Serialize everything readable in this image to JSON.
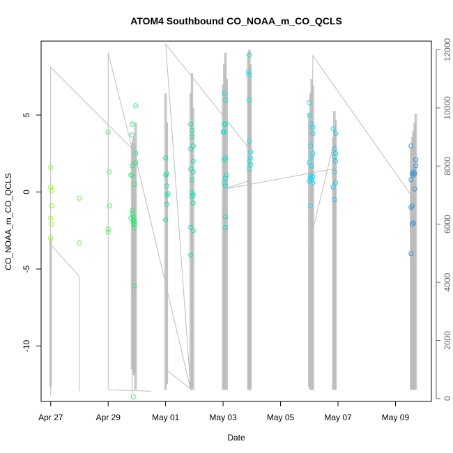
{
  "chart_data": {
    "type": "scatter",
    "title": "ATOM4 Southbound CO_NOAA_m_CO_QCLS",
    "xlabel": "Date",
    "ylabel": "CO_NOAA_m_CO_QCLS",
    "y2label": "",
    "x_axis": {
      "type": "date",
      "range": [
        "2018-04-26T16:00",
        "2018-05-10T06:00"
      ],
      "ticks": [
        {
          "value": "2018-04-27",
          "label": "Apr 27"
        },
        {
          "value": "2018-04-29",
          "label": "Apr 29"
        },
        {
          "value": "2018-05-01",
          "label": "May 01"
        },
        {
          "value": "2018-05-03",
          "label": "May 03"
        },
        {
          "value": "2018-05-05",
          "label": "May 05"
        },
        {
          "value": "2018-05-07",
          "label": "May 07"
        },
        {
          "value": "2018-05-09",
          "label": "May 09"
        }
      ]
    },
    "y_axis": {
      "range": [
        -13.6,
        9.8
      ],
      "ticks": [
        -10,
        -5,
        0,
        5
      ]
    },
    "y2_axis": {
      "range": [
        -100,
        12300
      ],
      "ticks": [
        0,
        2000,
        4000,
        6000,
        8000,
        10000,
        12000
      ]
    },
    "grid": false,
    "color_gradient": [
      "#7fff00",
      "#00e0a0",
      "#00e8ff",
      "#2a8fe0"
    ],
    "series": [
      {
        "style": "points",
        "axis": "left",
        "points": [
          {
            "x": "2018-04-27T00:00",
            "y": 1.6
          },
          {
            "x": "2018-04-27T00:00",
            "y": 0.3
          },
          {
            "x": "2018-04-27T01:00",
            "y": 0.1
          },
          {
            "x": "2018-04-27T01:00",
            "y": -0.9
          },
          {
            "x": "2018-04-27T00:00",
            "y": -1.7
          },
          {
            "x": "2018-04-27T01:00",
            "y": -2.1
          },
          {
            "x": "2018-04-27T00:00",
            "y": -3.0
          },
          {
            "x": "2018-04-28T00:00",
            "y": -0.4
          },
          {
            "x": "2018-04-28T00:00",
            "y": -3.3
          },
          {
            "x": "2018-04-29T00:00",
            "y": 3.9
          },
          {
            "x": "2018-04-29T01:00",
            "y": 1.3
          },
          {
            "x": "2018-04-29T01:00",
            "y": -0.9
          },
          {
            "x": "2018-04-29T00:00",
            "y": -2.4
          },
          {
            "x": "2018-04-29T00:00",
            "y": -2.6
          },
          {
            "x": "2018-04-29T20:00",
            "y": 4.4
          },
          {
            "x": "2018-04-29T20:00",
            "y": 3.7
          },
          {
            "x": "2018-04-29T20:00",
            "y": 1.7
          },
          {
            "x": "2018-04-29T19:00",
            "y": 1.1
          },
          {
            "x": "2018-04-29T20:00",
            "y": 1.1
          },
          {
            "x": "2018-04-29T22:00",
            "y": 0.5
          },
          {
            "x": "2018-04-29T20:00",
            "y": -1.2
          },
          {
            "x": "2018-04-29T20:00",
            "y": -1.4
          },
          {
            "x": "2018-04-29T21:00",
            "y": -1.6
          },
          {
            "x": "2018-04-29T19:00",
            "y": -1.7
          },
          {
            "x": "2018-04-29T21:00",
            "y": -1.8
          },
          {
            "x": "2018-04-29T22:00",
            "y": -1.9
          },
          {
            "x": "2018-04-29T21:00",
            "y": -2.0
          },
          {
            "x": "2018-04-29T22:00",
            "y": -2.1
          },
          {
            "x": "2018-04-29T22:00",
            "y": -2.3
          },
          {
            "x": "2018-04-29T23:00",
            "y": 5.6
          },
          {
            "x": "2018-04-29T23:00",
            "y": 2.5
          },
          {
            "x": "2018-04-29T23:00",
            "y": 1.9
          },
          {
            "x": "2018-04-29T22:00",
            "y": -6.1
          },
          {
            "x": "2018-04-29T21:00",
            "y": -13.3
          },
          {
            "x": "2018-05-01T00:00",
            "y": 2.2
          },
          {
            "x": "2018-05-01T01:00",
            "y": 1.2
          },
          {
            "x": "2018-05-01T00:00",
            "y": 1.1
          },
          {
            "x": "2018-05-01T01:00",
            "y": 0.4
          },
          {
            "x": "2018-05-01T02:00",
            "y": -0.1
          },
          {
            "x": "2018-05-01T01:00",
            "y": -0.2
          },
          {
            "x": "2018-05-01T01:00",
            "y": -0.8
          },
          {
            "x": "2018-05-01T00:00",
            "y": -1.8
          },
          {
            "x": "2018-05-01T21:00",
            "y": 4.4
          },
          {
            "x": "2018-05-01T22:00",
            "y": 4.0
          },
          {
            "x": "2018-05-01T22:00",
            "y": 3.6
          },
          {
            "x": "2018-05-01T23:00",
            "y": 3.0
          },
          {
            "x": "2018-05-01T21:00",
            "y": 2.8
          },
          {
            "x": "2018-05-01T23:00",
            "y": 2.0
          },
          {
            "x": "2018-05-01T21:00",
            "y": 1.5
          },
          {
            "x": "2018-05-01T23:00",
            "y": 1.3
          },
          {
            "x": "2018-05-01T22:00",
            "y": 0.8
          },
          {
            "x": "2018-05-01T22:00",
            "y": 0.0
          },
          {
            "x": "2018-05-01T23:00",
            "y": -0.2
          },
          {
            "x": "2018-05-01T22:00",
            "y": -0.3
          },
          {
            "x": "2018-05-01T23:00",
            "y": -0.7
          },
          {
            "x": "2018-05-01T21:00",
            "y": -2.3
          },
          {
            "x": "2018-05-01T23:00",
            "y": -2.5
          },
          {
            "x": "2018-05-01T21:00",
            "y": -4.1
          },
          {
            "x": "2018-05-03T01:00",
            "y": 6.4
          },
          {
            "x": "2018-05-03T02:00",
            "y": 6.0
          },
          {
            "x": "2018-05-03T01:00",
            "y": 4.4
          },
          {
            "x": "2018-05-03T02:00",
            "y": 4.4
          },
          {
            "x": "2018-05-03T00:00",
            "y": 3.9
          },
          {
            "x": "2018-05-03T01:00",
            "y": 3.9
          },
          {
            "x": "2018-05-03T02:00",
            "y": 2.2
          },
          {
            "x": "2018-05-03T01:00",
            "y": 2.1
          },
          {
            "x": "2018-05-03T03:00",
            "y": 1.1
          },
          {
            "x": "2018-05-03T02:00",
            "y": 0.9
          },
          {
            "x": "2018-05-03T01:00",
            "y": 0.6
          },
          {
            "x": "2018-05-03T02:00",
            "y": 0.4
          },
          {
            "x": "2018-05-03T02:00",
            "y": -1.6
          },
          {
            "x": "2018-05-03T02:00",
            "y": -2.3
          },
          {
            "x": "2018-05-03T22:00",
            "y": 8.9
          },
          {
            "x": "2018-05-03T21:00",
            "y": 7.8
          },
          {
            "x": "2018-05-03T22:00",
            "y": 7.6
          },
          {
            "x": "2018-05-03T22:00",
            "y": 6.0
          },
          {
            "x": "2018-05-03T22:00",
            "y": 3.3
          },
          {
            "x": "2018-05-03T23:00",
            "y": 2.6
          },
          {
            "x": "2018-05-03T23:00",
            "y": 2.2
          },
          {
            "x": "2018-05-03T22:00",
            "y": 2.0
          },
          {
            "x": "2018-05-03T23:00",
            "y": 1.8
          },
          {
            "x": "2018-05-03T22:00",
            "y": 1.5
          },
          {
            "x": "2018-05-06T00:00",
            "y": 5.8
          },
          {
            "x": "2018-05-06T00:00",
            "y": 5.0
          },
          {
            "x": "2018-05-06T02:00",
            "y": 4.4
          },
          {
            "x": "2018-05-06T03:00",
            "y": 4.2
          },
          {
            "x": "2018-05-06T03:00",
            "y": 3.8
          },
          {
            "x": "2018-05-06T01:00",
            "y": 3.0
          },
          {
            "x": "2018-05-06T03:00",
            "y": 2.5
          },
          {
            "x": "2018-05-06T02:00",
            "y": 2.3
          },
          {
            "x": "2018-05-06T00:00",
            "y": 1.9
          },
          {
            "x": "2018-05-06T02:00",
            "y": 1.7
          },
          {
            "x": "2018-05-06T01:00",
            "y": 1.1
          },
          {
            "x": "2018-05-06T03:00",
            "y": 1.0
          },
          {
            "x": "2018-05-06T01:00",
            "y": 0.9
          },
          {
            "x": "2018-05-06T02:00",
            "y": 0.8
          },
          {
            "x": "2018-05-06T00:00",
            "y": 0.7
          },
          {
            "x": "2018-05-06T03:00",
            "y": 0.6
          },
          {
            "x": "2018-05-06T01:00",
            "y": -0.9
          },
          {
            "x": "2018-05-06T20:00",
            "y": 4.1
          },
          {
            "x": "2018-05-06T22:00",
            "y": 3.8
          },
          {
            "x": "2018-05-06T21:00",
            "y": 2.8
          },
          {
            "x": "2018-05-06T22:00",
            "y": 2.5
          },
          {
            "x": "2018-05-06T21:00",
            "y": 2.3
          },
          {
            "x": "2018-05-06T22:00",
            "y": 2.0
          },
          {
            "x": "2018-05-06T21:00",
            "y": 1.3
          },
          {
            "x": "2018-05-06T22:00",
            "y": 0.6
          },
          {
            "x": "2018-05-06T20:00",
            "y": 0.3
          },
          {
            "x": "2018-05-06T21:00",
            "y": -0.5
          },
          {
            "x": "2018-05-09T13:00",
            "y": 3.0
          },
          {
            "x": "2018-05-09T17:00",
            "y": 2.1
          },
          {
            "x": "2018-05-09T17:00",
            "y": 1.7
          },
          {
            "x": "2018-05-09T15:00",
            "y": 1.3
          },
          {
            "x": "2018-05-09T14:00",
            "y": 1.2
          },
          {
            "x": "2018-05-09T16:00",
            "y": 1.2
          },
          {
            "x": "2018-05-09T15:00",
            "y": 1.1
          },
          {
            "x": "2018-05-09T13:00",
            "y": 0.8
          },
          {
            "x": "2018-05-09T16:00",
            "y": 0.2
          },
          {
            "x": "2018-05-09T14:00",
            "y": -0.9
          },
          {
            "x": "2018-05-09T13:00",
            "y": -1.0
          },
          {
            "x": "2018-05-09T15:00",
            "y": -2.0
          },
          {
            "x": "2018-05-09T14:00",
            "y": -2.1
          },
          {
            "x": "2018-05-09T13:00",
            "y": -4.0
          }
        ]
      },
      {
        "style": "line",
        "axis": "right",
        "segments": [
          {
            "points": [
              {
                "x": "2018-04-27T00:00",
                "y": 100
              },
              {
                "x": "2018-04-27T00:00",
                "y": 5300
              },
              {
                "x": "2018-04-28T00:00",
                "y": 4200
              },
              {
                "x": "2018-04-28T00:00",
                "y": 250
              },
              {
                "x": "2018-04-28T00:00",
                "y": 4200
              },
              {
                "x": "2018-04-27T00:00",
                "y": 5300
              },
              {
                "x": "2018-04-27T00:00",
                "y": 11400
              },
              {
                "x": "2018-04-29T20:00",
                "y": 8600
              },
              {
                "x": "2018-04-29T20:00",
                "y": 200
              },
              {
                "x": "2018-04-29T20:00",
                "y": 8600
              },
              {
                "x": "2018-04-29T00:00",
                "y": 11900
              },
              {
                "x": "2018-04-29T00:00",
                "y": 300
              },
              {
                "x": "2018-04-30T12:00",
                "y": 250
              }
            ]
          },
          {
            "points": [
              {
                "x": "2018-04-29T20:00",
                "y": 8800
              },
              {
                "x": "2018-05-01T21:00",
                "y": 300
              },
              {
                "x": "2018-05-01T00:00",
                "y": 12200
              },
              {
                "x": "2018-05-03T22:00",
                "y": 8600
              },
              {
                "x": "2018-05-03T22:00",
                "y": 250
              },
              {
                "x": "2018-05-03T22:00",
                "y": 7500
              },
              {
                "x": "2018-05-03T00:00",
                "y": 7200
              },
              {
                "x": "2018-05-06T20:00",
                "y": 7900
              },
              {
                "x": "2018-05-06T20:00",
                "y": 8700
              },
              {
                "x": "2018-05-06T00:00",
                "y": 5300
              },
              {
                "x": "2018-05-06T00:00",
                "y": 300
              },
              {
                "x": "2018-05-06T02:00",
                "y": 7000
              },
              {
                "x": "2018-05-06T03:00",
                "y": 11800
              },
              {
                "x": "2018-05-09T13:00",
                "y": 7000
              },
              {
                "x": "2018-05-09T13:00",
                "y": 300
              }
            ]
          },
          {
            "points": [
              {
                "x": "2018-05-01T00:00",
                "y": 1000
              },
              {
                "x": "2018-05-01T22:00",
                "y": 300
              }
            ]
          }
        ],
        "spikes": [
          {
            "x": "2018-04-27T00:00",
            "ymin": 400,
            "ymax": 5500
          },
          {
            "x": "2018-04-29T20:00",
            "ymin": 1000,
            "ymax": 8800
          },
          {
            "x": "2018-04-29T21:00",
            "ymin": 800,
            "ymax": 9000
          },
          {
            "x": "2018-04-29T22:00",
            "ymin": 900,
            "ymax": 8700
          },
          {
            "x": "2018-04-29T23:00",
            "ymin": 300,
            "ymax": 9500
          },
          {
            "x": "2018-05-01T00:00",
            "ymin": 300,
            "ymax": 10500
          },
          {
            "x": "2018-05-01T01:00",
            "ymin": 500,
            "ymax": 9500
          },
          {
            "x": "2018-05-01T21:00",
            "ymin": 300,
            "ymax": 10500
          },
          {
            "x": "2018-05-01T22:00",
            "ymin": 400,
            "ymax": 11200
          },
          {
            "x": "2018-05-01T23:00",
            "ymin": 300,
            "ymax": 10000
          },
          {
            "x": "2018-05-03T00:00",
            "ymin": 300,
            "ymax": 10800
          },
          {
            "x": "2018-05-03T01:00",
            "ymin": 300,
            "ymax": 11500
          },
          {
            "x": "2018-05-03T02:00",
            "ymin": 300,
            "ymax": 11900
          },
          {
            "x": "2018-05-03T03:00",
            "ymin": 300,
            "ymax": 11000
          },
          {
            "x": "2018-05-03T21:00",
            "ymin": 300,
            "ymax": 11900
          },
          {
            "x": "2018-05-03T22:00",
            "ymin": 300,
            "ymax": 12000
          },
          {
            "x": "2018-05-03T23:00",
            "ymin": 300,
            "ymax": 11500
          },
          {
            "x": "2018-05-06T00:00",
            "ymin": 400,
            "ymax": 9800
          },
          {
            "x": "2018-05-06T01:00",
            "ymin": 300,
            "ymax": 10500
          },
          {
            "x": "2018-05-06T02:00",
            "ymin": 300,
            "ymax": 11000
          },
          {
            "x": "2018-05-06T03:00",
            "ymin": 300,
            "ymax": 10800
          },
          {
            "x": "2018-05-06T20:00",
            "ymin": 300,
            "ymax": 9000
          },
          {
            "x": "2018-05-06T21:00",
            "ymin": 300,
            "ymax": 9900
          },
          {
            "x": "2018-05-06T22:00",
            "ymin": 300,
            "ymax": 9600
          },
          {
            "x": "2018-05-09T13:00",
            "ymin": 300,
            "ymax": 8600
          },
          {
            "x": "2018-05-09T14:00",
            "ymin": 300,
            "ymax": 9000
          },
          {
            "x": "2018-05-09T15:00",
            "ymin": 300,
            "ymax": 9200
          },
          {
            "x": "2018-05-09T16:00",
            "ymin": 300,
            "ymax": 9500
          },
          {
            "x": "2018-05-09T17:00",
            "ymin": 300,
            "ymax": 9800
          }
        ]
      }
    ]
  }
}
